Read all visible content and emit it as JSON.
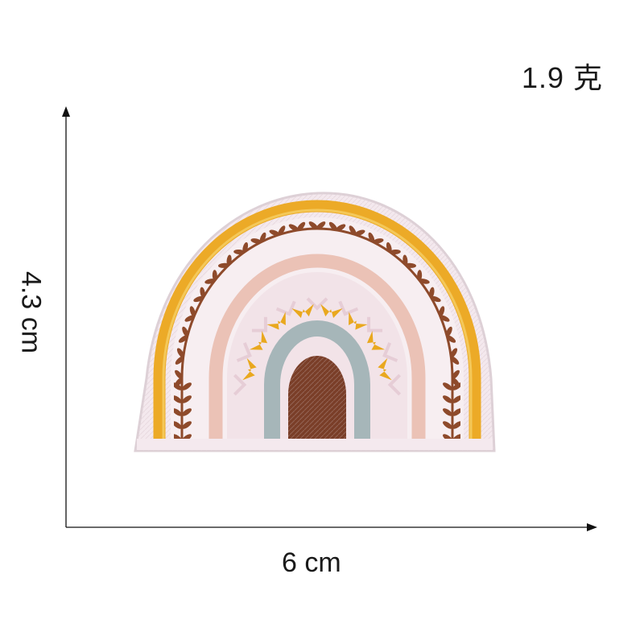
{
  "labels": {
    "weight": "1.9 克",
    "height": "4.3 cm",
    "width": "6 cm"
  },
  "photo": {
    "colors": {
      "felt": "#f4e9ee",
      "felt_edge": "#ddd0d6",
      "golden": "#ecaa27",
      "golden_light": "#f6cf67",
      "leaf": "#8e4a2b",
      "pink": "#ebc2b6",
      "sun": "#e9a81e",
      "blue": "#a6b6b9",
      "brown": "#7a3e28",
      "axis": "#111111"
    }
  }
}
